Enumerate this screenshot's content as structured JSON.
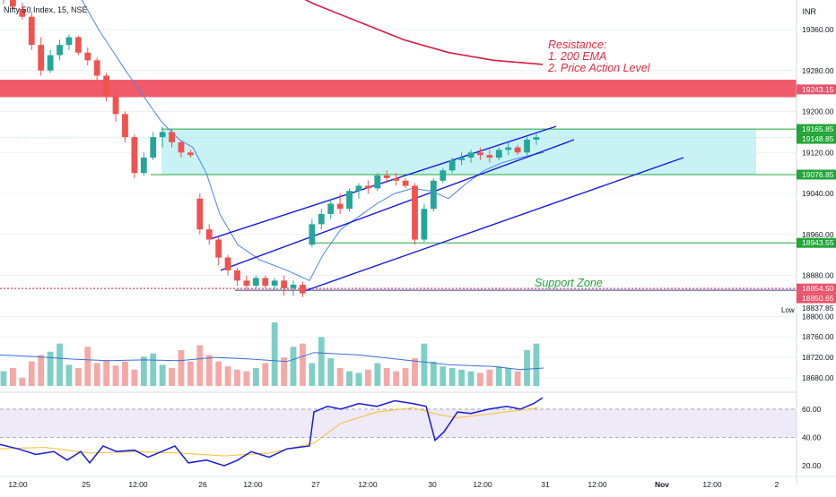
{
  "header": {
    "title": "Nifty 50 Index, 15, NSE",
    "currency": "INR"
  },
  "colors": {
    "up": "#26a69a",
    "down": "#ef5350",
    "upVol": "#7fcfc6",
    "downVol": "#f4a9a7",
    "channel": "#1a1adb",
    "green": "#22a63a",
    "resistanceZone": "#f05a6a",
    "ema": "#d81b45",
    "volMA": "#3b6fd9",
    "rsi": "#1a1adb",
    "rsiMA": "#f4c542"
  },
  "chart_data": [
    {
      "type": "candlestick",
      "title": "Nifty 50 Index, 15, NSE",
      "ylim": [
        18640,
        19440
      ],
      "y_ticks": [
        19360,
        19280,
        19200,
        19120,
        19040,
        18960,
        18880,
        18800,
        18760,
        18720,
        18680
      ],
      "y_tick_labels": [
        "19360.00",
        "19280.00",
        "19200.00",
        "19120.00",
        "19040.00",
        "18960.00",
        "18880.00",
        "18800.00",
        "18760.00",
        "18720.00",
        "18680.00"
      ],
      "x_tick_labels": [
        "12:00",
        "25",
        "12:00",
        "26",
        "12:00",
        "27",
        "12:00",
        "30",
        "12:00",
        "31",
        "12:00",
        "Nov",
        "12:00",
        "2"
      ],
      "price_labels": [
        {
          "value": 19243.15,
          "text": "19243.15",
          "color": "#e9546b"
        },
        {
          "value": 19165.85,
          "text": "19165.85",
          "color": "#22a63a"
        },
        {
          "value": 19148.85,
          "text": "19148.85",
          "color": "#22a63a"
        },
        {
          "value": 19076.85,
          "text": "19076.85",
          "color": "#22a63a"
        },
        {
          "value": 18943.55,
          "text": "18943.55",
          "color": "#22a63a"
        },
        {
          "value": 18854.5,
          "text": "18854.50",
          "color": "#e9546b"
        },
        {
          "value": 18850.65,
          "text": "18850.65",
          "color": "#e9546b"
        },
        {
          "value": 18837.85,
          "text": "18837.85",
          "color": "#ffffff"
        }
      ],
      "low_label": "Low",
      "levels": [
        {
          "name": "resistance-zone",
          "from": 19228,
          "to": 19262
        },
        {
          "name": "zone-top",
          "value": 19165.85
        },
        {
          "name": "zone-bottom",
          "value": 19076.85
        },
        {
          "name": "level-18943",
          "value": 18943.55
        },
        {
          "name": "support-line",
          "value": 18854.5
        }
      ],
      "channel": {
        "upper": [
          [
            236,
            18952
          ],
          [
            620,
            19171
          ]
        ],
        "middle": [
          [
            246,
            18890
          ],
          [
            640,
            19145
          ]
        ],
        "lower": [
          [
            340,
            18850
          ],
          [
            762,
            19110
          ]
        ]
      },
      "annotations": [
        {
          "text": "Resistance:",
          "color": "#e9283c"
        },
        {
          "text": "1. 200 EMA",
          "color": "#e9283c"
        },
        {
          "text": "2. Price Action Level",
          "color": "#e9283c"
        },
        {
          "text": "Support Zone",
          "color": "#22a63a"
        }
      ],
      "candles": [
        [
          0,
          19420,
          19430,
          19410,
          19425
        ],
        [
          1,
          19420,
          19428,
          19400,
          19405
        ],
        [
          2,
          19400,
          19412,
          19380,
          19385
        ],
        [
          3,
          19385,
          19395,
          19320,
          19330
        ],
        [
          4,
          19330,
          19345,
          19270,
          19280
        ],
        [
          5,
          19280,
          19320,
          19275,
          19310
        ],
        [
          6,
          19310,
          19340,
          19300,
          19330
        ],
        [
          7,
          19330,
          19350,
          19320,
          19345
        ],
        [
          8,
          19345,
          19348,
          19310,
          19315
        ],
        [
          9,
          19315,
          19325,
          19290,
          19300
        ],
        [
          10,
          19300,
          19305,
          19260,
          19270
        ],
        [
          11,
          19270,
          19275,
          19220,
          19230
        ],
        [
          12,
          19230,
          19240,
          19180,
          19195
        ],
        [
          13,
          19195,
          19200,
          19140,
          19150
        ],
        [
          14,
          19150,
          19155,
          19070,
          19080
        ],
        [
          15,
          19080,
          19120,
          19075,
          19110
        ],
        [
          16,
          19110,
          19160,
          19105,
          19150
        ],
        [
          17,
          19150,
          19170,
          19130,
          19160
        ],
        [
          18,
          19160,
          19165,
          19130,
          19140
        ],
        [
          19,
          19140,
          19145,
          19110,
          19120
        ],
        [
          20,
          19120,
          19125,
          19110,
          19115
        ],
        [
          21,
          19030,
          19040,
          18960,
          18970
        ],
        [
          22,
          18970,
          18980,
          18940,
          18950
        ],
        [
          23,
          18950,
          18955,
          18900,
          18915
        ],
        [
          24,
          18915,
          18920,
          18880,
          18890
        ],
        [
          25,
          18890,
          18895,
          18860,
          18870
        ],
        [
          26,
          18870,
          18880,
          18850,
          18860
        ],
        [
          27,
          18860,
          18880,
          18855,
          18875
        ],
        [
          28,
          18875,
          18880,
          18855,
          18860
        ],
        [
          29,
          18860,
          18875,
          18850,
          18870
        ],
        [
          30,
          18870,
          18880,
          18840,
          18855
        ],
        [
          31,
          18855,
          18870,
          18840,
          18862
        ],
        [
          32,
          18862,
          18868,
          18838,
          18845
        ],
        [
          33,
          18940,
          18990,
          18935,
          18980
        ],
        [
          34,
          18980,
          19010,
          18970,
          19000
        ],
        [
          35,
          19000,
          19030,
          18990,
          19020
        ],
        [
          36,
          19020,
          19040,
          19000,
          19010
        ],
        [
          37,
          19010,
          19050,
          19005,
          19045
        ],
        [
          38,
          19045,
          19060,
          19030,
          19055
        ],
        [
          39,
          19055,
          19065,
          19040,
          19050
        ],
        [
          40,
          19050,
          19080,
          19045,
          19075
        ],
        [
          41,
          19075,
          19085,
          19060,
          19070
        ],
        [
          42,
          19070,
          19080,
          19055,
          19065
        ],
        [
          43,
          19065,
          19070,
          19050,
          19055
        ],
        [
          44,
          19055,
          19060,
          18940,
          18950
        ],
        [
          45,
          18950,
          19020,
          18945,
          19010
        ],
        [
          46,
          19010,
          19070,
          19005,
          19065
        ],
        [
          47,
          19065,
          19090,
          19060,
          19085
        ],
        [
          48,
          19085,
          19110,
          19080,
          19105
        ],
        [
          49,
          19105,
          19120,
          19095,
          19110
        ],
        [
          50,
          19110,
          19125,
          19100,
          19120
        ],
        [
          51,
          19120,
          19130,
          19105,
          19115
        ],
        [
          52,
          19115,
          19125,
          19100,
          19110
        ],
        [
          53,
          19110,
          19130,
          19105,
          19125
        ],
        [
          54,
          19125,
          19140,
          19115,
          19130
        ],
        [
          55,
          19130,
          19135,
          19115,
          19120
        ],
        [
          56,
          19120,
          19150,
          19115,
          19145
        ],
        [
          57,
          19145,
          19158,
          19135,
          19150
        ]
      ],
      "ema200": [
        [
          310,
          19445
        ],
        [
          350,
          19410
        ],
        [
          400,
          19375
        ],
        [
          450,
          19340
        ],
        [
          500,
          19315
        ],
        [
          550,
          19300
        ],
        [
          605,
          19292
        ]
      ],
      "ema_short": [
        [
          84,
          19440
        ],
        [
          110,
          19360
        ],
        [
          140,
          19280
        ],
        [
          160,
          19230
        ],
        [
          180,
          19180
        ],
        [
          200,
          19145
        ],
        [
          215,
          19130
        ],
        [
          230,
          19080
        ],
        [
          245,
          19000
        ],
        [
          265,
          18940
        ],
        [
          290,
          18910
        ],
        [
          320,
          18890
        ],
        [
          345,
          18870
        ],
        [
          360,
          18920
        ],
        [
          380,
          18970
        ],
        [
          400,
          18995
        ],
        [
          420,
          19020
        ],
        [
          440,
          19040
        ],
        [
          460,
          19050
        ],
        [
          480,
          19045
        ],
        [
          500,
          19030
        ],
        [
          520,
          19060
        ],
        [
          540,
          19085
        ],
        [
          560,
          19100
        ],
        [
          580,
          19110
        ],
        [
          606,
          19120
        ]
      ],
      "volume": {
        "ylim": [
          0,
          100
        ],
        "values": [
          18,
          22,
          10,
          30,
          38,
          42,
          52,
          26,
          22,
          48,
          28,
          32,
          25,
          30,
          20,
          36,
          40,
          26,
          22,
          44,
          30,
          50,
          38,
          30,
          24,
          20,
          18,
          22,
          28,
          78,
          35,
          48,
          52,
          28,
          60,
          34,
          22,
          18,
          16,
          20,
          28,
          22,
          18,
          22,
          34,
          52,
          30,
          24,
          22,
          20,
          18,
          16,
          20,
          24,
          22,
          18,
          44,
          52
        ],
        "ma": [
          [
            0,
            38
          ],
          [
            40,
            36
          ],
          [
            80,
            33
          ],
          [
            120,
            31
          ],
          [
            160,
            32
          ],
          [
            200,
            31
          ],
          [
            240,
            35
          ],
          [
            280,
            33
          ],
          [
            320,
            30
          ],
          [
            350,
            41
          ],
          [
            400,
            38
          ],
          [
            450,
            32
          ],
          [
            500,
            26
          ],
          [
            550,
            24
          ],
          [
            580,
            20
          ],
          [
            606,
            22
          ]
        ]
      }
    },
    {
      "type": "line",
      "title": "",
      "ylim": [
        15,
        72
      ],
      "y_ticks": [
        60,
        40,
        20
      ],
      "y_tick_labels": [
        "60.00",
        "40.00",
        "20.00"
      ],
      "band": [
        40,
        60
      ],
      "series": [
        {
          "values": [
            [
              0,
              35
            ],
            [
              20,
              32
            ],
            [
              40,
              28
            ],
            [
              60,
              30
            ],
            [
              75,
              24
            ],
            [
              90,
              30
            ],
            [
              100,
              22
            ],
            [
              115,
              34
            ],
            [
              130,
              30
            ],
            [
              150,
              31
            ],
            [
              165,
              26
            ],
            [
              180,
              30
            ],
            [
              195,
              34
            ],
            [
              210,
              22
            ],
            [
              230,
              24
            ],
            [
              250,
              20
            ],
            [
              265,
              24
            ],
            [
              280,
              30
            ],
            [
              300,
              26
            ],
            [
              320,
              32
            ],
            [
              345,
              34
            ],
            [
              350,
              58
            ],
            [
              365,
              62
            ],
            [
              380,
              60
            ],
            [
              400,
              64
            ],
            [
              420,
              62
            ],
            [
              440,
              66
            ],
            [
              460,
              64
            ],
            [
              475,
              62
            ],
            [
              485,
              38
            ],
            [
              495,
              44
            ],
            [
              510,
              58
            ],
            [
              525,
              57
            ],
            [
              545,
              60
            ],
            [
              565,
              62
            ],
            [
              580,
              60
            ],
            [
              595,
              64
            ],
            [
              605,
              68
            ]
          ]
        },
        {
          "values": [
            [
              0,
              32
            ],
            [
              50,
              33
            ],
            [
              100,
              29
            ],
            [
              150,
              30
            ],
            [
              200,
              29
            ],
            [
              250,
              27
            ],
            [
              300,
              29
            ],
            [
              350,
              36
            ],
            [
              380,
              50
            ],
            [
              420,
              58
            ],
            [
              460,
              61
            ],
            [
              490,
              56
            ],
            [
              510,
              54
            ],
            [
              550,
              57
            ],
            [
              600,
              61
            ]
          ]
        }
      ]
    }
  ]
}
